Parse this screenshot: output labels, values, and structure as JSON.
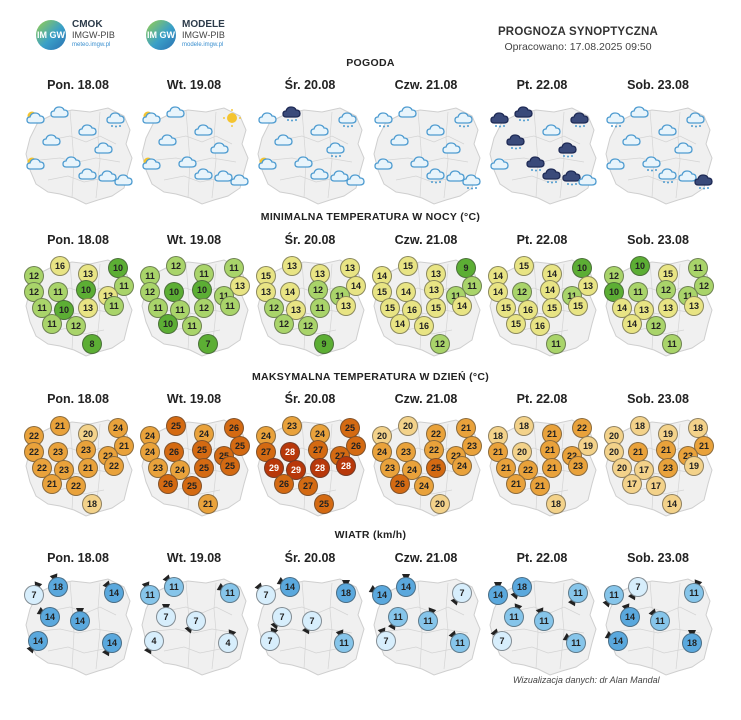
{
  "logos": {
    "cmok": {
      "mark": "IM GW",
      "name": "CMOK",
      "org": "IMGW-PIB",
      "url": "meteo.imgw.pl"
    },
    "modele": {
      "mark": "IM GW",
      "name": "MODELE",
      "org": "IMGW-PIB",
      "url": "modele.imgw.pl"
    }
  },
  "header": {
    "title": "PROGNOZA SYNOPTYCZNA",
    "issued": "Opracowano: 17.08.2025 09:50"
  },
  "days": [
    "Pon. 18.08",
    "Wt. 19.08",
    "Śr. 20.08",
    "Czw. 21.08",
    "Pt. 22.08",
    "Sob. 23.08"
  ],
  "sections": {
    "weather": "POGODA",
    "tmin": "MINIMALNA TEMPERATURA W NOCY (°C)",
    "tmax": "MAKSYMALNA TEMPERATURA W DZIEŃ (°C)",
    "wind": "WIATR (km/h)"
  },
  "weather_icons": [
    [
      "partly-cloudy-icon",
      "cloud-icon",
      "cloud-rain-icon",
      "cloud-icon",
      "cloud-icon",
      "cloud-icon",
      "partly-cloudy-icon",
      "cloud-icon",
      "cloud-icon",
      "cloud-icon",
      "cloud-icon"
    ],
    [
      "partly-cloudy-icon",
      "cloud-icon",
      "sun-icon",
      "cloud-icon",
      "cloud-icon",
      "cloud-icon",
      "partly-cloudy-icon",
      "cloud-icon",
      "cloud-icon",
      "cloud-icon",
      "cloud-icon"
    ],
    [
      "cloud-icon",
      "storm-cloud-icon",
      "cloud-rain-icon",
      "cloud-icon",
      "cloud-icon",
      "cloud-rain-icon",
      "partly-cloudy-icon",
      "cloud-icon",
      "cloud-icon",
      "cloud-icon",
      "cloud-icon"
    ],
    [
      "cloud-rain-icon",
      "cloud-icon",
      "cloud-rain-icon",
      "cloud-icon",
      "cloud-icon",
      "cloud-icon",
      "cloud-icon",
      "cloud-icon",
      "cloud-rain-icon",
      "cloud-icon",
      "cloud-rain-icon"
    ],
    [
      "storm-cloud-icon",
      "storm-cloud-icon",
      "storm-cloud-icon",
      "cloud-icon",
      "storm-cloud-icon",
      "storm-cloud-icon",
      "cloud-icon",
      "storm-cloud-icon",
      "storm-cloud-icon",
      "storm-cloud-icon",
      "cloud-icon"
    ],
    [
      "cloud-rain-icon",
      "cloud-icon",
      "cloud-rain-icon",
      "cloud-icon",
      "cloud-icon",
      "cloud-icon",
      "cloud-icon",
      "cloud-rain-icon",
      "cloud-rain-icon",
      "cloud-icon",
      "storm-cloud-icon"
    ]
  ],
  "tmin": [
    [
      "12",
      "16",
      "13",
      "10",
      "11",
      "12",
      "11",
      "10",
      "13",
      "11",
      "10",
      "13",
      "11",
      "11",
      "12",
      "8"
    ],
    [
      "11",
      "12",
      "11",
      "11",
      "13",
      "12",
      "10",
      "10",
      "11",
      "11",
      "11",
      "12",
      "11",
      "10",
      "11",
      "7"
    ],
    [
      "15",
      "13",
      "13",
      "13",
      "14",
      "13",
      "14",
      "12",
      "11",
      "12",
      "13",
      "11",
      "13",
      "12",
      "12",
      "9"
    ],
    [
      "14",
      "15",
      "13",
      "9",
      "11",
      "15",
      "14",
      "13",
      "11",
      "15",
      "16",
      "15",
      "14",
      "14",
      "16",
      "12"
    ],
    [
      "14",
      "15",
      "14",
      "10",
      "13",
      "14",
      "12",
      "14",
      "11",
      "15",
      "16",
      "15",
      "15",
      "15",
      "16",
      "11"
    ],
    [
      "12",
      "10",
      "15",
      "11",
      "12",
      "10",
      "11",
      "12",
      "11",
      "14",
      "13",
      "13",
      "13",
      "14",
      "12",
      "11"
    ]
  ],
  "tmax": [
    [
      "22",
      "21",
      "20",
      "24",
      "21",
      "22",
      "23",
      "23",
      "22",
      "22",
      "23",
      "21",
      "22",
      "21",
      "22",
      "18"
    ],
    [
      "24",
      "25",
      "24",
      "26",
      "25",
      "24",
      "26",
      "25",
      "25",
      "23",
      "24",
      "25",
      "25",
      "26",
      "25",
      "21"
    ],
    [
      "24",
      "23",
      "24",
      "25",
      "26",
      "27",
      "28",
      "27",
      "27",
      "29",
      "29",
      "28",
      "28",
      "26",
      "27",
      "25"
    ],
    [
      "20",
      "20",
      "22",
      "21",
      "23",
      "24",
      "23",
      "22",
      "22",
      "23",
      "24",
      "25",
      "24",
      "26",
      "24",
      "20"
    ],
    [
      "18",
      "18",
      "21",
      "22",
      "19",
      "21",
      "20",
      "21",
      "22",
      "21",
      "22",
      "21",
      "23",
      "21",
      "21",
      "18"
    ],
    [
      "20",
      "18",
      "19",
      "18",
      "21",
      "20",
      "21",
      "21",
      "23",
      "20",
      "17",
      "23",
      "19",
      "17",
      "17",
      "14"
    ]
  ],
  "wind": [
    [
      "7",
      "18",
      "14",
      "14",
      "14",
      "14",
      "14"
    ],
    [
      "11",
      "11",
      "11",
      "7",
      "7",
      "4",
      "4"
    ],
    [
      "7",
      "14",
      "18",
      "7",
      "7",
      "7",
      "11"
    ],
    [
      "14",
      "14",
      "7",
      "11",
      "11",
      "7",
      "11"
    ],
    [
      "14",
      "18",
      "11",
      "11",
      "11",
      "7",
      "11"
    ],
    [
      "11",
      "7",
      "11",
      "14",
      "11",
      "14",
      "18"
    ]
  ],
  "colors": {
    "tmin_cool": "#5cae34",
    "tmin_mid": "#a9d46a",
    "tmin_warm": "#e8e484",
    "tmax_low": "#f3d28a",
    "tmax_mid": "#e9a23b",
    "tmax_high": "#d46a12",
    "tmax_hot": "#b8380a",
    "wind_low": "#d7eefc",
    "wind_mid": "#86c5ea",
    "wind_high": "#5aa8dd",
    "map_bg": "#f0f0f0",
    "map_border": "#d4d4d4"
  },
  "credit": "Wizualizacja danych: dr Alan Mandal"
}
